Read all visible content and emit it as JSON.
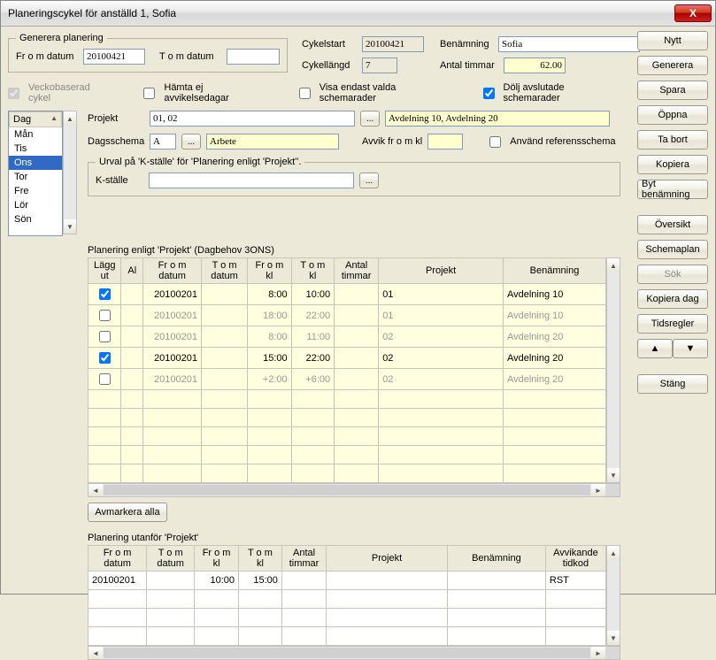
{
  "window": {
    "title": "Planeringscykel för anställd 1, Sofia",
    "close_glyph": "X"
  },
  "generate": {
    "legend": "Generera planering",
    "from_label": "Fr o m datum",
    "from_value": "20100421",
    "to_label": "T o m datum",
    "to_value": ""
  },
  "cycle": {
    "start_label": "Cykelstart",
    "start_value": "20100421",
    "length_label": "Cykellängd",
    "length_value": "7",
    "name_label": "Benämning",
    "name_value": "Sofia",
    "hours_label": "Antal timmar",
    "hours_value": "62.00"
  },
  "opts": {
    "week": "Veckobaserad cykel",
    "fetch": "Hämta ej avvikelsedagar",
    "show": "Visa endast valda schemarader",
    "hide": "Dölj avslutade schemarader"
  },
  "days": {
    "header": "Dag",
    "items": [
      "Mån",
      "Tis",
      "Ons",
      "Tor",
      "Fre",
      "Lör",
      "Sön"
    ],
    "selected_index": 2
  },
  "proj": {
    "label": "Projekt",
    "value": "01, 02",
    "desc": "Avdelning 10, Avdelning 20",
    "sched_label": "Dagsschema",
    "sched_value": "A",
    "sched_desc": "Arbete",
    "dev_label": "Avvik fr o m kl",
    "dev_value": "",
    "ref_label": "Använd referensschema"
  },
  "ksel": {
    "legend": "Urval på 'K-ställe' för 'Planering enligt 'Projekt''.",
    "label": "K-ställe",
    "value": ""
  },
  "grid1": {
    "title": "Planering enligt 'Projekt'  (Dagbehov 3ONS)",
    "cols": [
      "Lägg\nut",
      "Al",
      "Fr o m\ndatum",
      "T o m\ndatum",
      "Fr o m\nkl",
      "T o m\nkl",
      "Antal\ntimmar",
      "Projekt",
      "Benämning"
    ],
    "rows": [
      {
        "chk": true,
        "al": "",
        "fd": "20100201",
        "td": "",
        "fk": "8:00",
        "tk": "10:00",
        "at": "",
        "pr": "01",
        "bn": "Avdelning 10",
        "g": false
      },
      {
        "chk": false,
        "al": "",
        "fd": "20100201",
        "td": "",
        "fk": "18:00",
        "tk": "22:00",
        "at": "",
        "pr": "01",
        "bn": "Avdelning 10",
        "g": true
      },
      {
        "chk": false,
        "al": "",
        "fd": "20100201",
        "td": "",
        "fk": "8:00",
        "tk": "11:00",
        "at": "",
        "pr": "02",
        "bn": "Avdelning 20",
        "g": true
      },
      {
        "chk": true,
        "al": "",
        "fd": "20100201",
        "td": "",
        "fk": "15:00",
        "tk": "22:00",
        "at": "",
        "pr": "02",
        "bn": "Avdelning 20",
        "g": false
      },
      {
        "chk": false,
        "al": "",
        "fd": "20100201",
        "td": "",
        "fk": "+2:00",
        "tk": "+6:00",
        "at": "",
        "pr": "02",
        "bn": "Avdelning 20",
        "g": true
      }
    ],
    "unmark": "Avmarkera alla"
  },
  "grid2": {
    "title": "Planering utanför 'Projekt'",
    "cols": [
      "Fr o m\ndatum",
      "T o m\ndatum",
      "Fr o m\nkl",
      "T o m\nkl",
      "Antal\ntimmar",
      "Projekt",
      "Benämning",
      "Avvikande\ntidkod"
    ],
    "rows": [
      {
        "fd": "20100201",
        "td": "",
        "fk": "10:00",
        "tk": "15:00",
        "at": "",
        "pr": "",
        "bn": "",
        "ak": "RST"
      }
    ]
  },
  "buttons": {
    "nytt": "Nytt",
    "gen": "Generera",
    "spara": "Spara",
    "oppna": "Öppna",
    "tabort": "Ta bort",
    "kopiera": "Kopiera",
    "bytben": "Byt benämning",
    "oversikt": "Översikt",
    "schemaplan": "Schemaplan",
    "sok": "Sök",
    "kopdag": "Kopiera dag",
    "tidsregler": "Tidsregler",
    "up": "▲",
    "down": "▼",
    "stang": "Stäng"
  },
  "ellipsis": "..."
}
